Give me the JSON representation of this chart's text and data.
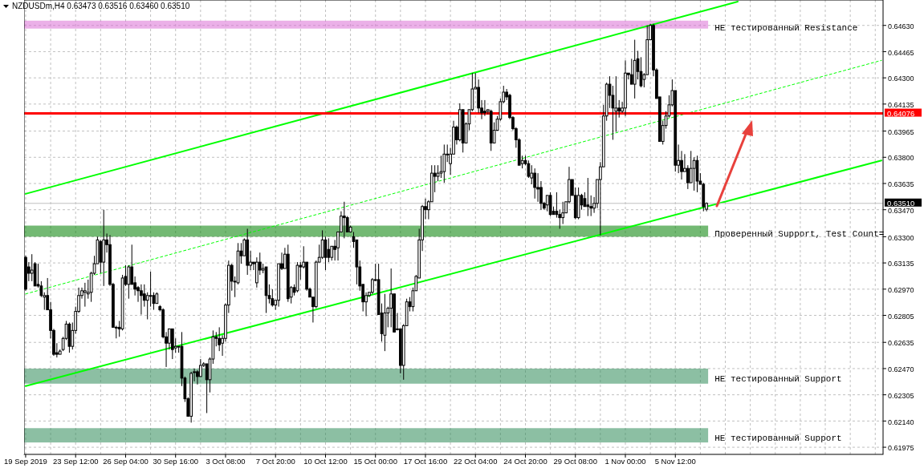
{
  "chart_data": {
    "type": "candlestick",
    "title": "NZDUSDm,H4 0.63473 0.63516 0.63460 0.63510",
    "categories": [
      "19 Sep 2019",
      null,
      null,
      null,
      null,
      null,
      null,
      null,
      null,
      null,
      null,
      null,
      null,
      null,
      null,
      null,
      "23 Sep 12:00",
      null,
      null,
      null,
      null,
      null,
      null,
      null,
      null,
      null,
      null,
      null,
      null,
      null,
      null,
      null,
      "26 Sep 04:00",
      null,
      null,
      null,
      null,
      null,
      null,
      null,
      null,
      null,
      null,
      null,
      null,
      null,
      null,
      null,
      "30 Sep 16:00",
      null,
      null,
      null,
      null,
      null,
      null,
      null,
      null,
      null,
      null,
      null,
      null,
      null,
      null,
      null,
      "3 Oct 08:00",
      null,
      null,
      null,
      null,
      null,
      null,
      null,
      null,
      null,
      null,
      null,
      null,
      null,
      null,
      null,
      "7 Oct 20:00",
      null,
      null,
      null,
      null,
      null,
      null,
      null,
      null,
      null,
      null,
      null,
      null,
      null,
      null,
      null,
      "10 Oct 12:00",
      null,
      null,
      null,
      null,
      null,
      null,
      null,
      null,
      null,
      null,
      null,
      null,
      null,
      null,
      null,
      "15 Oct 00:00",
      null,
      null,
      null,
      null,
      null,
      null,
      null,
      null,
      null,
      null,
      null,
      null,
      null,
      null,
      null,
      "17 Oct 16:00",
      null,
      null,
      null,
      null,
      null,
      null,
      null,
      null,
      null,
      null,
      null,
      null,
      null,
      null,
      null,
      "22 Oct 04:00",
      null,
      null,
      null,
      null,
      null,
      null,
      null,
      null,
      null,
      null,
      null,
      null,
      null,
      null,
      null,
      "24 Oct 20:00",
      null,
      null,
      null,
      null,
      null,
      null,
      null,
      null,
      null,
      null,
      null,
      null,
      null,
      null,
      null,
      "29 Oct 08:00",
      null,
      null,
      null,
      null,
      null,
      null,
      null,
      null,
      null,
      null,
      null,
      null,
      null,
      null,
      null,
      "1 Nov 00:00",
      null,
      null,
      null,
      null,
      null,
      null,
      null,
      null,
      null,
      null,
      null,
      null,
      null,
      null,
      null,
      "5 Nov 12:00",
      null,
      null,
      null,
      null,
      null,
      null,
      null,
      null,
      null,
      null,
      null,
      null,
      null,
      null,
      null,
      null,
      null,
      null,
      null,
      null,
      null,
      null,
      null,
      null,
      null,
      null,
      null,
      null,
      null,
      null,
      null,
      null,
      null,
      null,
      null,
      null,
      null,
      null,
      null,
      null,
      null,
      null,
      null,
      null,
      null,
      null,
      null,
      null,
      null,
      null,
      null,
      null,
      null,
      null,
      null,
      null,
      null,
      null,
      null,
      null,
      null,
      null,
      null,
      null,
      null,
      null
    ],
    "ohlc": [
      [
        0.6317,
        0.6318,
        0.6296,
        0.6297
      ],
      [
        0.6311,
        0.6314,
        0.6302,
        0.6307
      ],
      [
        0.6307,
        0.6319,
        0.6302,
        0.6309
      ],
      [
        0.6313,
        0.6314,
        0.6299,
        0.6299
      ],
      [
        0.63,
        0.6313,
        0.6298,
        0.6299
      ],
      [
        0.6299,
        0.6302,
        0.6292,
        0.6293
      ],
      [
        0.6292,
        0.6295,
        0.6284,
        0.6293
      ],
      [
        0.6293,
        0.6304,
        0.6284,
        0.6284
      ],
      [
        0.6284,
        0.6289,
        0.6266,
        0.6271
      ],
      [
        0.6271,
        0.6272,
        0.6255,
        0.6256
      ],
      [
        0.6257,
        0.6263,
        0.6254,
        0.6256
      ],
      [
        0.6256,
        0.6259,
        0.6256,
        0.6258
      ],
      [
        0.6259,
        0.6267,
        0.6258,
        0.6266
      ],
      [
        0.6266,
        0.6277,
        0.6265,
        0.6275
      ],
      [
        0.6275,
        0.6276,
        0.6257,
        0.6261
      ],
      [
        0.6261,
        0.6276,
        0.6259,
        0.6271
      ],
      [
        0.6271,
        0.6286,
        0.6269,
        0.6283
      ],
      [
        0.6283,
        0.6298,
        0.6282,
        0.6293
      ],
      [
        0.6293,
        0.6298,
        0.6291,
        0.6296
      ],
      [
        0.6295,
        0.6301,
        0.6286,
        0.6296
      ],
      [
        0.6294,
        0.6303,
        0.6291,
        0.6295
      ],
      [
        0.6295,
        0.6308,
        0.6289,
        0.6307
      ],
      [
        0.6307,
        0.6318,
        0.6306,
        0.6313
      ],
      [
        0.6313,
        0.633,
        0.6313,
        0.6328
      ],
      [
        0.6327,
        0.6328,
        0.6307,
        0.6314
      ],
      [
        0.6314,
        0.6347,
        0.6299,
        0.6328
      ],
      [
        0.6328,
        0.6332,
        0.632,
        0.6325
      ],
      [
        0.6325,
        0.6331,
        0.6299,
        0.63
      ],
      [
        0.63,
        0.6301,
        0.6273,
        0.6273
      ],
      [
        0.6273,
        0.6274,
        0.6266,
        0.6273
      ],
      [
        0.6273,
        0.6277,
        0.6267,
        0.6272
      ],
      [
        0.6272,
        0.6306,
        0.6271,
        0.6304
      ],
      [
        0.6305,
        0.6312,
        0.6299,
        0.63
      ],
      [
        0.63,
        0.6312,
        0.6291,
        0.6311
      ],
      [
        0.6311,
        0.6325,
        0.63,
        0.63
      ],
      [
        0.6301,
        0.6305,
        0.6293,
        0.6297
      ],
      [
        0.6298,
        0.6299,
        0.6289,
        0.6296
      ],
      [
        0.6296,
        0.63,
        0.6281,
        0.6293
      ],
      [
        0.6294,
        0.63,
        0.6286,
        0.629
      ],
      [
        0.629,
        0.6295,
        0.6278,
        0.6293
      ],
      [
        0.6293,
        0.6308,
        0.6286,
        0.6293
      ],
      [
        0.6293,
        0.6295,
        0.6284,
        0.6288
      ],
      [
        0.6288,
        0.6295,
        0.6288,
        0.6294
      ],
      [
        0.6286,
        0.6287,
        0.6283,
        0.6284
      ],
      [
        0.6284,
        0.6285,
        0.6266,
        0.6267
      ],
      [
        0.6267,
        0.627,
        0.6248,
        0.6263
      ],
      [
        0.6263,
        0.6272,
        0.6259,
        0.6272
      ],
      [
        0.6272,
        0.6272,
        0.6253,
        0.6259
      ],
      [
        0.626,
        0.6266,
        0.6257,
        0.6261
      ],
      [
        0.6261,
        0.6261,
        0.6257,
        0.6261
      ],
      [
        0.6261,
        0.627,
        0.6236,
        0.6241
      ],
      [
        0.6241,
        0.6242,
        0.6226,
        0.6228
      ],
      [
        0.6228,
        0.6229,
        0.6217,
        0.6217
      ],
      [
        0.6217,
        0.6245,
        0.6213,
        0.6244
      ],
      [
        0.6245,
        0.6247,
        0.6239,
        0.6245
      ],
      [
        0.6245,
        0.6246,
        0.6237,
        0.6242
      ],
      [
        0.6242,
        0.6253,
        0.6242,
        0.6249
      ],
      [
        0.6249,
        0.6251,
        0.6248,
        0.625
      ],
      [
        0.625,
        0.625,
        0.6219,
        0.624
      ],
      [
        0.624,
        0.6254,
        0.6232,
        0.6253
      ],
      [
        0.6253,
        0.6271,
        0.625,
        0.6267
      ],
      [
        0.6267,
        0.627,
        0.6261,
        0.6266
      ],
      [
        0.6266,
        0.6273,
        0.6258,
        0.6262
      ],
      [
        0.6263,
        0.6268,
        0.6255,
        0.6266
      ],
      [
        0.6266,
        0.6288,
        0.6264,
        0.6287
      ],
      [
        0.6287,
        0.6315,
        0.6282,
        0.6312
      ],
      [
        0.6312,
        0.6313,
        0.6296,
        0.6302
      ],
      [
        0.6302,
        0.6305,
        0.6292,
        0.6302
      ],
      [
        0.6301,
        0.6326,
        0.63,
        0.6321
      ],
      [
        0.6321,
        0.6326,
        0.6313,
        0.6318
      ],
      [
        0.6318,
        0.6329,
        0.6318,
        0.6328
      ],
      [
        0.6328,
        0.6335,
        0.6306,
        0.6312
      ],
      [
        0.6312,
        0.6321,
        0.6309,
        0.6314
      ],
      [
        0.6314,
        0.6314,
        0.6309,
        0.6313
      ],
      [
        0.6301,
        0.6317,
        0.6298,
        0.6314
      ],
      [
        0.6314,
        0.632,
        0.6306,
        0.6309
      ],
      [
        0.6309,
        0.6313,
        0.6307,
        0.631
      ],
      [
        0.6311,
        0.6311,
        0.6282,
        0.6293
      ],
      [
        0.6293,
        0.63,
        0.6288,
        0.6291
      ],
      [
        0.6291,
        0.6297,
        0.6286,
        0.6287
      ],
      [
        0.6287,
        0.629,
        0.6284,
        0.629
      ],
      [
        0.629,
        0.6313,
        0.6286,
        0.6313
      ],
      [
        0.6313,
        0.632,
        0.6309,
        0.631
      ],
      [
        0.631,
        0.6323,
        0.631,
        0.6319
      ],
      [
        0.6319,
        0.6325,
        0.6289,
        0.6291
      ],
      [
        0.6292,
        0.6299,
        0.6288,
        0.6298
      ],
      [
        0.6298,
        0.63,
        0.6293,
        0.6295
      ],
      [
        0.6296,
        0.6314,
        0.6295,
        0.6312
      ],
      [
        0.6312,
        0.6314,
        0.6303,
        0.6311
      ],
      [
        0.6311,
        0.6324,
        0.631,
        0.6314
      ],
      [
        0.6314,
        0.6314,
        0.6296,
        0.6297
      ],
      [
        0.6297,
        0.6298,
        0.6292,
        0.6292
      ],
      [
        0.6292,
        0.6292,
        0.6276,
        0.6286
      ],
      [
        0.6286,
        0.6315,
        0.6285,
        0.6314
      ],
      [
        0.6314,
        0.6325,
        0.6314,
        0.6317
      ],
      [
        0.6317,
        0.6334,
        0.6316,
        0.6328
      ],
      [
        0.6328,
        0.633,
        0.6309,
        0.6317
      ],
      [
        0.6322,
        0.6329,
        0.6314,
        0.6317
      ],
      [
        0.6317,
        0.6324,
        0.6315,
        0.6324
      ],
      [
        0.6324,
        0.6328,
        0.6315,
        0.6322
      ],
      [
        0.6323,
        0.6333,
        0.6315,
        0.6333
      ],
      [
        0.6333,
        0.6346,
        0.6333,
        0.6343
      ],
      [
        0.6343,
        0.6352,
        0.6329,
        0.6342
      ],
      [
        0.6342,
        0.6343,
        0.6333,
        0.6333
      ],
      [
        0.6333,
        0.6337,
        0.6333,
        0.6336
      ],
      [
        0.633,
        0.6333,
        0.6323,
        0.6327
      ],
      [
        0.6328,
        0.6328,
        0.63,
        0.6311
      ],
      [
        0.6311,
        0.6315,
        0.6296,
        0.6299
      ],
      [
        0.63,
        0.63,
        0.6283,
        0.6289
      ],
      [
        0.6289,
        0.6295,
        0.628,
        0.6293
      ],
      [
        0.6293,
        0.6295,
        0.6292,
        0.6295
      ],
      [
        0.6295,
        0.6304,
        0.6294,
        0.6303
      ],
      [
        0.6303,
        0.6313,
        0.6302,
        0.6303
      ],
      [
        0.6303,
        0.6313,
        0.6281,
        0.6281
      ],
      [
        0.6282,
        0.6288,
        0.6264,
        0.6269
      ],
      [
        0.6268,
        0.6294,
        0.6258,
        0.6282
      ],
      [
        0.6282,
        0.6286,
        0.6273,
        0.6285
      ],
      [
        0.6285,
        0.631,
        0.6273,
        0.6294
      ],
      [
        0.6294,
        0.6294,
        0.627,
        0.627
      ],
      [
        0.6272,
        0.6282,
        0.6271,
        0.6272
      ],
      [
        0.6272,
        0.6272,
        0.6244,
        0.6249
      ],
      [
        0.6249,
        0.6275,
        0.624,
        0.6274
      ],
      [
        0.6274,
        0.6291,
        0.6274,
        0.6289
      ],
      [
        0.6289,
        0.6292,
        0.6283,
        0.6286
      ],
      [
        0.6286,
        0.6298,
        0.6283,
        0.6296
      ],
      [
        0.6296,
        0.6306,
        0.6296,
        0.6305
      ],
      [
        0.6304,
        0.6335,
        0.6304,
        0.6328
      ],
      [
        0.6328,
        0.635,
        0.6321,
        0.6349
      ],
      [
        0.6349,
        0.6354,
        0.6341,
        0.6347
      ],
      [
        0.6347,
        0.6353,
        0.6341,
        0.6352
      ],
      [
        0.6352,
        0.6375,
        0.6352,
        0.637
      ],
      [
        0.637,
        0.6375,
        0.6358,
        0.6368
      ],
      [
        0.6368,
        0.6375,
        0.6365,
        0.637
      ],
      [
        0.637,
        0.6381,
        0.6367,
        0.6371
      ],
      [
        0.6371,
        0.6388,
        0.6364,
        0.6382
      ],
      [
        0.6382,
        0.6388,
        0.6377,
        0.6382
      ],
      [
        0.6376,
        0.6386,
        0.6369,
        0.6382
      ],
      [
        0.6382,
        0.6403,
        0.6382,
        0.6399
      ],
      [
        0.6399,
        0.64,
        0.6388,
        0.6391
      ],
      [
        0.6391,
        0.6414,
        0.639,
        0.641
      ],
      [
        0.641,
        0.641,
        0.6383,
        0.6389
      ],
      [
        0.6389,
        0.6402,
        0.6389,
        0.6401
      ],
      [
        0.6401,
        0.641,
        0.6397,
        0.641
      ],
      [
        0.641,
        0.6433,
        0.6409,
        0.6423
      ],
      [
        0.6423,
        0.6433,
        0.6423,
        0.6424
      ],
      [
        0.6424,
        0.6429,
        0.6408,
        0.6411
      ],
      [
        0.6411,
        0.6416,
        0.6404,
        0.6408
      ],
      [
        0.6409,
        0.6416,
        0.6406,
        0.6408
      ],
      [
        0.6409,
        0.641,
        0.6407,
        0.641
      ],
      [
        0.6409,
        0.641,
        0.6384,
        0.6389
      ],
      [
        0.6389,
        0.6402,
        0.6389,
        0.6397
      ],
      [
        0.6397,
        0.6406,
        0.6397,
        0.6404
      ],
      [
        0.6404,
        0.6417,
        0.6403,
        0.6415
      ],
      [
        0.6415,
        0.6425,
        0.6414,
        0.6421
      ],
      [
        0.6421,
        0.6423,
        0.6416,
        0.6418
      ],
      [
        0.6419,
        0.642,
        0.6404,
        0.6405
      ],
      [
        0.6405,
        0.6406,
        0.6397,
        0.6398
      ],
      [
        0.6398,
        0.6399,
        0.6386,
        0.6391
      ],
      [
        0.6391,
        0.6392,
        0.6375,
        0.6375
      ],
      [
        0.6376,
        0.6381,
        0.6373,
        0.6378
      ],
      [
        0.6378,
        0.6381,
        0.6375,
        0.6376
      ],
      [
        0.6376,
        0.6378,
        0.6367,
        0.6368
      ],
      [
        0.6367,
        0.6375,
        0.6363,
        0.637
      ],
      [
        0.637,
        0.6373,
        0.6354,
        0.6361
      ],
      [
        0.6361,
        0.637,
        0.6352,
        0.636
      ],
      [
        0.6361,
        0.6365,
        0.6347,
        0.6351
      ],
      [
        0.6351,
        0.6352,
        0.6347,
        0.6348
      ],
      [
        0.635,
        0.6356,
        0.6346,
        0.6356
      ],
      [
        0.6356,
        0.6358,
        0.6343,
        0.6344
      ],
      [
        0.6346,
        0.6349,
        0.6344,
        0.6344
      ],
      [
        0.6346,
        0.6358,
        0.6342,
        0.6344
      ],
      [
        0.6344,
        0.6347,
        0.6335,
        0.6342
      ],
      [
        0.6342,
        0.6352,
        0.6338,
        0.6345
      ],
      [
        0.6345,
        0.6352,
        0.6345,
        0.6352
      ],
      [
        0.6352,
        0.6374,
        0.6351,
        0.6366
      ],
      [
        0.6366,
        0.6366,
        0.6356,
        0.6356
      ],
      [
        0.6356,
        0.6361,
        0.6341,
        0.6342
      ],
      [
        0.6342,
        0.6361,
        0.6341,
        0.6356
      ],
      [
        0.6356,
        0.6357,
        0.6347,
        0.635
      ],
      [
        0.6354,
        0.6358,
        0.6349,
        0.6349
      ],
      [
        0.635,
        0.6367,
        0.6343,
        0.6349
      ],
      [
        0.6349,
        0.6356,
        0.6343,
        0.6348
      ],
      [
        0.6348,
        0.6355,
        0.6345,
        0.6351
      ],
      [
        0.6351,
        0.6366,
        0.6348,
        0.6366
      ],
      [
        0.6366,
        0.6377,
        0.6331,
        0.6374
      ],
      [
        0.6374,
        0.6413,
        0.6374,
        0.6406
      ],
      [
        0.6406,
        0.6427,
        0.6403,
        0.6426
      ],
      [
        0.6426,
        0.6431,
        0.6411,
        0.6419
      ],
      [
        0.6419,
        0.6425,
        0.6391,
        0.6411
      ],
      [
        0.6409,
        0.6431,
        0.6396,
        0.6411
      ],
      [
        0.6411,
        0.6416,
        0.6405,
        0.6409
      ],
      [
        0.6409,
        0.6415,
        0.6408,
        0.6411
      ],
      [
        0.6411,
        0.6441,
        0.6406,
        0.6433
      ],
      [
        0.6433,
        0.6433,
        0.6429,
        0.6432
      ],
      [
        0.6432,
        0.6442,
        0.6426,
        0.6426
      ],
      [
        0.6426,
        0.6454,
        0.6417,
        0.6441
      ],
      [
        0.6442,
        0.6447,
        0.6429,
        0.6434
      ],
      [
        0.6434,
        0.6443,
        0.6424,
        0.6425
      ],
      [
        0.6429,
        0.6433,
        0.6424,
        0.6432
      ],
      [
        0.6432,
        0.6463,
        0.6432,
        0.6454
      ],
      [
        0.6454,
        0.6464,
        0.6454,
        0.6463
      ],
      [
        0.6463,
        0.6464,
        0.6431,
        0.6435
      ],
      [
        0.6435,
        0.6436,
        0.6417,
        0.6417
      ],
      [
        0.6418,
        0.6418,
        0.639,
        0.639
      ],
      [
        0.639,
        0.6403,
        0.6388,
        0.64
      ],
      [
        0.64,
        0.6409,
        0.6398,
        0.6406
      ],
      [
        0.6406,
        0.6419,
        0.6405,
        0.6413
      ],
      [
        0.6413,
        0.6429,
        0.6412,
        0.6422
      ],
      [
        0.6422,
        0.6422,
        0.6371,
        0.6375
      ],
      [
        0.6375,
        0.6388,
        0.637,
        0.6378
      ],
      [
        0.6378,
        0.6384,
        0.6366,
        0.6371
      ],
      [
        0.6371,
        0.6382,
        0.6371,
        0.6373
      ],
      [
        0.6373,
        0.6375,
        0.636,
        0.6364
      ],
      [
        0.6364,
        0.6384,
        0.6364,
        0.6373
      ],
      [
        0.6373,
        0.638,
        0.6359,
        0.6378
      ],
      [
        0.6378,
        0.6381,
        0.6358,
        0.6365
      ],
      [
        0.6365,
        0.637,
        0.6363,
        0.6363
      ],
      [
        0.6363,
        0.6364,
        0.6346,
        0.6349
      ],
      [
        0.63473,
        0.63516,
        0.6346,
        0.6351
      ],
      null,
      null,
      null,
      null,
      null,
      null,
      null,
      null,
      null,
      null,
      null,
      null,
      null,
      null,
      null,
      null,
      null,
      null,
      null,
      null,
      null,
      null,
      null,
      null,
      null,
      null,
      null,
      null,
      null,
      null,
      null,
      null,
      null,
      null,
      null,
      null,
      null,
      null,
      null,
      null,
      null,
      null,
      null,
      null,
      null,
      null,
      null,
      null,
      null,
      null,
      null,
      null,
      null,
      null,
      null,
      null
    ],
    "series": [
      {
        "type": "line",
        "color": "#00ff00",
        "line_style": "solid",
        "values": [
          0.6357,
          null,
          null,
          null,
          null,
          null,
          null,
          null,
          null,
          null,
          null,
          null,
          null,
          null,
          null,
          null,
          null,
          null,
          null,
          null,
          null,
          null,
          null,
          null,
          null,
          null,
          null,
          null,
          null,
          null,
          null,
          null,
          null,
          null,
          null,
          null,
          null,
          null,
          null,
          null,
          null,
          null,
          null,
          null,
          null,
          null,
          null,
          null,
          null,
          null,
          null,
          null,
          null,
          null,
          null,
          null,
          null,
          null,
          null,
          null,
          null,
          null,
          null,
          null,
          null,
          null,
          null,
          null,
          null,
          null,
          null,
          null,
          null,
          null,
          null,
          null,
          null,
          null,
          null,
          null,
          null,
          null,
          null,
          null,
          null,
          null,
          null,
          null,
          null,
          null,
          null,
          null,
          null,
          null,
          null,
          null,
          null,
          null,
          null,
          null,
          null,
          null,
          null,
          null,
          null,
          null,
          null,
          null,
          null,
          null,
          null,
          null,
          null,
          null,
          null,
          null,
          null,
          null,
          null,
          null,
          null,
          null,
          null,
          null,
          null,
          null,
          null,
          null,
          null,
          null,
          null,
          null,
          null,
          null,
          null,
          null,
          null,
          null,
          null,
          null,
          null,
          null,
          null,
          null,
          null,
          null,
          null,
          null,
          null,
          null,
          null,
          null,
          null,
          null,
          null,
          null,
          null,
          null,
          null,
          null,
          null,
          null,
          null,
          null,
          null,
          null,
          null,
          null,
          null,
          null,
          null,
          null,
          null,
          null,
          null,
          null,
          null,
          null,
          null,
          null,
          null,
          null,
          null,
          null,
          null,
          null,
          null,
          null,
          null,
          null,
          null,
          null,
          null,
          null,
          null,
          null,
          null,
          null,
          null,
          null,
          null,
          null,
          null,
          null,
          null,
          null,
          null,
          null,
          null,
          null,
          null,
          null,
          null,
          null,
          null,
          null,
          null,
          null,
          null,
          null,
          null,
          null,
          null,
          null,
          null,
          null,
          null,
          null,
          0.6478,
          null,
          null,
          null,
          null,
          null,
          null,
          null,
          null,
          null,
          null,
          null,
          null,
          null,
          null,
          null,
          null,
          null,
          null,
          null,
          null,
          null,
          null,
          null,
          null,
          null,
          null,
          null,
          null,
          null,
          null,
          null,
          null,
          null,
          null,
          null,
          null,
          null,
          null,
          null,
          null,
          null,
          null,
          null,
          null,
          null,
          null
        ]
      },
      {
        "type": "line",
        "color": "#00ff00",
        "line_style": "dashed",
        "values": [
          0.6294,
          null,
          null,
          null,
          null,
          null,
          null,
          null,
          null,
          null,
          null,
          null,
          null,
          null,
          null,
          null,
          null,
          null,
          null,
          null,
          null,
          null,
          null,
          null,
          null,
          null,
          null,
          null,
          null,
          null,
          null,
          null,
          null,
          null,
          null,
          null,
          null,
          null,
          null,
          null,
          null,
          null,
          null,
          null,
          null,
          null,
          null,
          null,
          null,
          null,
          null,
          null,
          null,
          null,
          null,
          null,
          null,
          null,
          null,
          null,
          null,
          null,
          null,
          null,
          null,
          null,
          null,
          null,
          null,
          null,
          null,
          null,
          null,
          null,
          null,
          null,
          null,
          null,
          null,
          null,
          null,
          null,
          null,
          null,
          null,
          null,
          null,
          null,
          null,
          null,
          null,
          null,
          null,
          null,
          null,
          null,
          null,
          null,
          null,
          null,
          null,
          null,
          null,
          null,
          null,
          null,
          null,
          null,
          null,
          null,
          null,
          null,
          null,
          null,
          null,
          null,
          null,
          null,
          null,
          null,
          null,
          null,
          null,
          null,
          null,
          null,
          null,
          null,
          null,
          null,
          null,
          null,
          null,
          null,
          null,
          null,
          null,
          null,
          null,
          null,
          null,
          null,
          null,
          null,
          null,
          null,
          null,
          null,
          null,
          null,
          null,
          null,
          null,
          null,
          null,
          null,
          null,
          null,
          null,
          null,
          null,
          null,
          null,
          null,
          null,
          null,
          null,
          null,
          null,
          null,
          null,
          null,
          null,
          null,
          null,
          null,
          null,
          null,
          null,
          null,
          null,
          null,
          null,
          null,
          null,
          null,
          null,
          null,
          null,
          null,
          null,
          null,
          null,
          null,
          null,
          null,
          null,
          null,
          null,
          null,
          null,
          null,
          null,
          null,
          null,
          null,
          null,
          null,
          null,
          null,
          null,
          null,
          null,
          null,
          null,
          null,
          null,
          null,
          null,
          null,
          null,
          null,
          null,
          null,
          null,
          null,
          null,
          null,
          null,
          null,
          null,
          null,
          null,
          null,
          null,
          null,
          null,
          null,
          null,
          null,
          null,
          null,
          null,
          null,
          null,
          null,
          null,
          null,
          null,
          null,
          null,
          null,
          null,
          null,
          null,
          null,
          null,
          null,
          null,
          null,
          null,
          null,
          null,
          null,
          null,
          null,
          null,
          null,
          null,
          null,
          null,
          null,
          null,
          null,
          0.6441
        ]
      },
      {
        "type": "line",
        "color": "#00ff00",
        "line_style": "solid",
        "values": [
          0.6236,
          null,
          null,
          null,
          null,
          null,
          null,
          null,
          null,
          null,
          null,
          null,
          null,
          null,
          null,
          null,
          null,
          null,
          null,
          null,
          null,
          null,
          null,
          null,
          null,
          null,
          null,
          null,
          null,
          null,
          null,
          null,
          null,
          null,
          null,
          null,
          null,
          null,
          null,
          null,
          null,
          null,
          null,
          null,
          null,
          null,
          null,
          null,
          null,
          null,
          null,
          null,
          null,
          null,
          null,
          null,
          null,
          null,
          null,
          null,
          null,
          null,
          null,
          null,
          null,
          null,
          null,
          null,
          null,
          null,
          null,
          null,
          null,
          null,
          null,
          null,
          null,
          null,
          null,
          null,
          null,
          null,
          null,
          null,
          null,
          null,
          null,
          null,
          null,
          null,
          null,
          null,
          null,
          null,
          null,
          null,
          null,
          null,
          null,
          null,
          null,
          null,
          null,
          null,
          null,
          null,
          null,
          null,
          null,
          null,
          null,
          null,
          null,
          null,
          null,
          null,
          null,
          null,
          null,
          null,
          null,
          null,
          null,
          null,
          null,
          null,
          null,
          null,
          null,
          null,
          null,
          null,
          null,
          null,
          null,
          null,
          null,
          null,
          null,
          null,
          null,
          null,
          null,
          null,
          null,
          null,
          null,
          null,
          null,
          null,
          null,
          null,
          null,
          null,
          null,
          null,
          null,
          null,
          null,
          null,
          null,
          null,
          null,
          null,
          null,
          null,
          null,
          null,
          null,
          null,
          null,
          null,
          null,
          null,
          null,
          null,
          null,
          null,
          null,
          null,
          null,
          null,
          null,
          null,
          null,
          null,
          null,
          null,
          null,
          null,
          null,
          null,
          null,
          null,
          null,
          null,
          null,
          null,
          null,
          null,
          null,
          null,
          null,
          null,
          null,
          null,
          null,
          null,
          null,
          null,
          null,
          null,
          null,
          null,
          null,
          null,
          null,
          null,
          null,
          null,
          null,
          null,
          null,
          null,
          null,
          null,
          null,
          null,
          null,
          null,
          null,
          null,
          null,
          null,
          null,
          null,
          null,
          null,
          null,
          null,
          null,
          null,
          null,
          null,
          null,
          null,
          null,
          null,
          null,
          null,
          null,
          null,
          null,
          null,
          null,
          null,
          null,
          null,
          null,
          null,
          null,
          null,
          null,
          null,
          null,
          null,
          null,
          null,
          null,
          null,
          null,
          null,
          null,
          null,
          0.6378
        ]
      }
    ],
    "ylim": [
      0.6193,
      0.6479
    ],
    "yticks": [
      {
        "value": 0.6463,
        "label": "0.64630"
      },
      {
        "value": 0.64465,
        "label": "0.64465"
      },
      {
        "value": 0.643,
        "label": "0.64300"
      },
      {
        "value": 0.64135,
        "label": "0.64135"
      },
      {
        "value": 0.63965,
        "label": "0.63965"
      },
      {
        "value": 0.638,
        "label": "0.63800"
      },
      {
        "value": 0.63635,
        "label": "0.63635"
      },
      {
        "value": 0.6347,
        "label": "0.63470"
      },
      {
        "value": 0.633,
        "label": "0.63300"
      },
      {
        "value": 0.63135,
        "label": "0.63135"
      },
      {
        "value": 0.6297,
        "label": "0.62970"
      },
      {
        "value": 0.62805,
        "label": "0.62805"
      },
      {
        "value": 0.62635,
        "label": "0.62635"
      },
      {
        "value": 0.6247,
        "label": "0.62470"
      },
      {
        "value": 0.62305,
        "label": "0.62305"
      },
      {
        "value": 0.6214,
        "label": "0.62140"
      },
      {
        "value": 0.61975,
        "label": "0.61975"
      }
    ],
    "grid": true,
    "ref_lines": [
      {
        "axis": "y",
        "value": 0.64076,
        "label": "0.64076",
        "color": "#ff0000"
      },
      {
        "axis": "y",
        "value": 0.6351,
        "label": "0.63510",
        "color": "#c0c0c0"
      }
    ],
    "bands": [
      {
        "axis": "y",
        "from": 0.6461,
        "to": 0.6466,
        "label": "НЕ тестированный Resistance",
        "color": "#da70d6"
      },
      {
        "axis": "y",
        "from": 0.633,
        "to": 0.6337,
        "label": "Проверенный Support, Test Count=",
        "color": "#008000"
      },
      {
        "axis": "y",
        "from": 0.62375,
        "to": 0.6247,
        "label": "НЕ тестированный Support",
        "color": "#2e8b57"
      },
      {
        "axis": "y",
        "from": 0.62005,
        "to": 0.62095,
        "label": "НЕ тестированный Support",
        "color": "#2e8b57"
      }
    ]
  }
}
